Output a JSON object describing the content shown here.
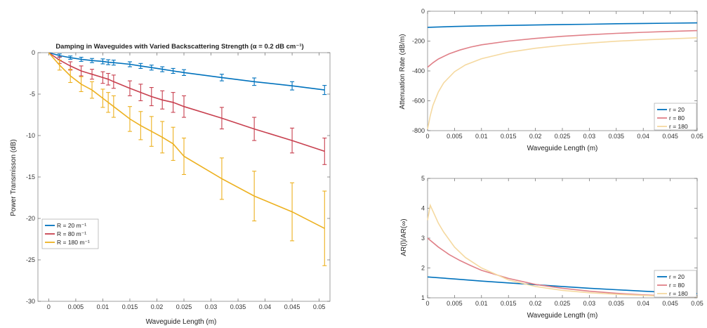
{
  "chart_data": [
    {
      "type": "line",
      "title": "Damping in Waveguides with Varied Backscattering Strength (α = 0.2 dB cm⁻¹)",
      "xlabel": "Waveguide Length (m)",
      "ylabel": "Power Transmisson (dB)",
      "xlim": [
        -0.002,
        0.052
      ],
      "ylim": [
        -30,
        0
      ],
      "xticks": [
        0,
        0.005,
        0.01,
        0.015,
        0.02,
        0.025,
        0.03,
        0.035,
        0.04,
        0.045,
        0.05
      ],
      "yticks": [
        0,
        -5,
        -10,
        -15,
        -20,
        -25,
        -30
      ],
      "grid": false,
      "legend_position": "bottom-left",
      "series": [
        {
          "name": "R = 20 m⁻¹",
          "color": "#0072BD",
          "x": [
            0,
            0.002,
            0.004,
            0.006,
            0.008,
            0.01,
            0.011,
            0.012,
            0.015,
            0.017,
            0.019,
            0.021,
            0.023,
            0.025,
            0.032,
            0.038,
            0.045,
            0.051
          ],
          "values": [
            0,
            -0.35,
            -0.6,
            -0.8,
            -0.95,
            -1.05,
            -1.15,
            -1.2,
            -1.4,
            -1.6,
            -1.8,
            -2.0,
            -2.2,
            -2.4,
            -3.0,
            -3.5,
            -4.0,
            -4.5
          ],
          "errors": [
            0.1,
            0.2,
            0.2,
            0.25,
            0.25,
            0.3,
            0.3,
            0.3,
            0.3,
            0.3,
            0.3,
            0.3,
            0.3,
            0.35,
            0.4,
            0.45,
            0.5,
            0.55
          ]
        },
        {
          "name": "R = 80 m⁻¹",
          "color": "#C8404F",
          "x": [
            0,
            0.002,
            0.004,
            0.006,
            0.008,
            0.01,
            0.011,
            0.012,
            0.015,
            0.017,
            0.019,
            0.021,
            0.023,
            0.025,
            0.032,
            0.038,
            0.045,
            0.051
          ],
          "values": [
            0,
            -0.9,
            -1.6,
            -2.2,
            -2.6,
            -3.0,
            -3.2,
            -3.5,
            -4.3,
            -4.8,
            -5.3,
            -5.7,
            -6.0,
            -6.5,
            -7.9,
            -9.2,
            -10.6,
            -11.9
          ],
          "errors": [
            0.1,
            0.4,
            0.5,
            0.6,
            0.6,
            0.7,
            0.7,
            0.8,
            0.9,
            1.0,
            1.1,
            1.1,
            1.2,
            1.3,
            1.3,
            1.4,
            1.5,
            1.6
          ]
        },
        {
          "name": "R = 180 m⁻¹",
          "color": "#EDB120",
          "x": [
            0,
            0.002,
            0.004,
            0.006,
            0.008,
            0.01,
            0.011,
            0.012,
            0.015,
            0.017,
            0.019,
            0.021,
            0.023,
            0.025,
            0.032,
            0.038,
            0.045,
            0.051
          ],
          "values": [
            0,
            -1.5,
            -2.8,
            -3.8,
            -4.5,
            -5.5,
            -6.0,
            -6.5,
            -8.0,
            -8.8,
            -9.5,
            -10.2,
            -11.0,
            -12.5,
            -15.2,
            -17.3,
            -19.2,
            -21.2
          ],
          "errors": [
            0.1,
            0.6,
            0.8,
            0.9,
            1.0,
            1.1,
            1.2,
            1.3,
            1.5,
            1.7,
            1.8,
            1.9,
            2.0,
            2.2,
            2.5,
            3.0,
            3.5,
            4.5
          ]
        }
      ]
    },
    {
      "type": "line",
      "title": "",
      "xlabel": "Waveguide Length (m)",
      "ylabel": "Attenuation Rate (dB/m)",
      "xlim": [
        0,
        0.05
      ],
      "ylim": [
        -800,
        0
      ],
      "xticks": [
        0,
        0.005,
        0.01,
        0.015,
        0.02,
        0.025,
        0.03,
        0.035,
        0.04,
        0.045,
        0.05
      ],
      "yticks": [
        0,
        -200,
        -400,
        -600,
        -800
      ],
      "grid": false,
      "legend_position": "bottom-right",
      "series": [
        {
          "name": "r = 20",
          "color": "#0072BD",
          "x": [
            0,
            0.005,
            0.01,
            0.015,
            0.02,
            0.025,
            0.03,
            0.035,
            0.04,
            0.045,
            0.05
          ],
          "values": [
            -108,
            -102,
            -98,
            -95,
            -92,
            -89,
            -87,
            -84,
            -82,
            -80,
            -78
          ]
        },
        {
          "name": "r = 80",
          "color": "#E08088",
          "x": [
            0,
            0.001,
            0.002,
            0.004,
            0.006,
            0.008,
            0.01,
            0.015,
            0.02,
            0.025,
            0.03,
            0.035,
            0.04,
            0.045,
            0.05
          ],
          "values": [
            -375,
            -345,
            -320,
            -285,
            -260,
            -240,
            -225,
            -200,
            -182,
            -168,
            -157,
            -148,
            -141,
            -135,
            -130
          ]
        },
        {
          "name": "r = 180",
          "color": "#F5D9A0",
          "x": [
            0,
            0.0005,
            0.001,
            0.002,
            0.003,
            0.005,
            0.007,
            0.01,
            0.015,
            0.02,
            0.025,
            0.03,
            0.035,
            0.04,
            0.045,
            0.05
          ],
          "values": [
            -790,
            -700,
            -630,
            -540,
            -480,
            -405,
            -360,
            -318,
            -275,
            -248,
            -228,
            -213,
            -201,
            -192,
            -185,
            -178
          ]
        }
      ]
    },
    {
      "type": "line",
      "title": "",
      "xlabel": "Waveguide Length (m)",
      "ylabel": "AR(l)/AR(∞)",
      "xlim": [
        0,
        0.05
      ],
      "ylim": [
        1,
        5
      ],
      "xticks": [
        0,
        0.005,
        0.01,
        0.015,
        0.02,
        0.025,
        0.03,
        0.035,
        0.04,
        0.045,
        0.05
      ],
      "yticks": [
        1,
        2,
        3,
        4,
        5
      ],
      "grid": false,
      "legend_position": "bottom-right",
      "series": [
        {
          "name": "r = 20",
          "color": "#0072BD",
          "x": [
            0,
            0.005,
            0.01,
            0.015,
            0.02,
            0.025,
            0.03,
            0.035,
            0.04,
            0.045,
            0.05
          ],
          "values": [
            1.7,
            1.63,
            1.56,
            1.5,
            1.44,
            1.38,
            1.32,
            1.27,
            1.22,
            1.18,
            1.14
          ]
        },
        {
          "name": "r = 80",
          "color": "#E08088",
          "x": [
            0,
            0.002,
            0.004,
            0.006,
            0.008,
            0.01,
            0.015,
            0.02,
            0.025,
            0.03,
            0.035,
            0.04,
            0.045,
            0.05
          ],
          "values": [
            3.0,
            2.7,
            2.45,
            2.25,
            2.08,
            1.92,
            1.65,
            1.45,
            1.32,
            1.22,
            1.15,
            1.1,
            1.06,
            1.03
          ]
        },
        {
          "name": "r = 180",
          "color": "#F5D9A0",
          "x": [
            0,
            0.0005,
            0.001,
            0.002,
            0.003,
            0.005,
            0.007,
            0.01,
            0.015,
            0.02,
            0.025,
            0.03,
            0.035,
            0.04,
            0.045,
            0.05
          ],
          "values": [
            3.6,
            4.1,
            3.9,
            3.5,
            3.2,
            2.7,
            2.35,
            2.0,
            1.6,
            1.38,
            1.25,
            1.17,
            1.12,
            1.08,
            1.05,
            1.03
          ]
        }
      ]
    }
  ]
}
